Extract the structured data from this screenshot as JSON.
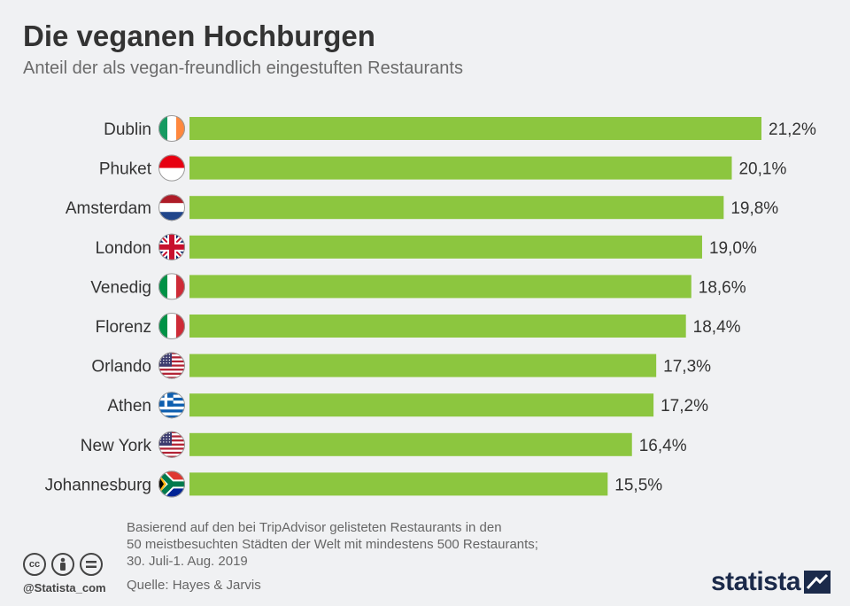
{
  "header": {
    "title": "Die veganen Hochburgen",
    "subtitle": "Anteil der als vegan-freundlich eingestuften Restaurants"
  },
  "chart_data": {
    "type": "bar",
    "orientation": "horizontal",
    "categories": [
      "Dublin",
      "Phuket",
      "Amsterdam",
      "London",
      "Venedig",
      "Florenz",
      "Orlando",
      "Athen",
      "New York",
      "Johannesburg"
    ],
    "values": [
      21.2,
      20.1,
      19.8,
      19.0,
      18.6,
      18.4,
      17.3,
      17.2,
      16.4,
      15.5
    ],
    "value_labels": [
      "21,2%",
      "20,1%",
      "19,8%",
      "19,0%",
      "18,6%",
      "18,4%",
      "17,3%",
      "17,2%",
      "16,4%",
      "15,5%"
    ],
    "flags": [
      "ireland-flag",
      "indonesia-flag",
      "netherlands-flag",
      "uk-flag",
      "italy-flag",
      "italy-flag",
      "usa-flag",
      "greece-flag",
      "usa-flag",
      "south-africa-flag"
    ],
    "bar_color": "#8cc63f",
    "xlim": [
      0,
      21.2
    ],
    "grid": false
  },
  "footer": {
    "note_lines": [
      "Basierend auf den bei TripAdvisor gelisteten Restaurants in den",
      "50 meistbesuchten Städten der Welt mit mindestens 500 Restaurants;",
      "30. Juli-1. Aug. 2019"
    ],
    "source": "Quelle: Hayes & Jarvis",
    "handle": "@Statista_com",
    "logo": "statista"
  }
}
